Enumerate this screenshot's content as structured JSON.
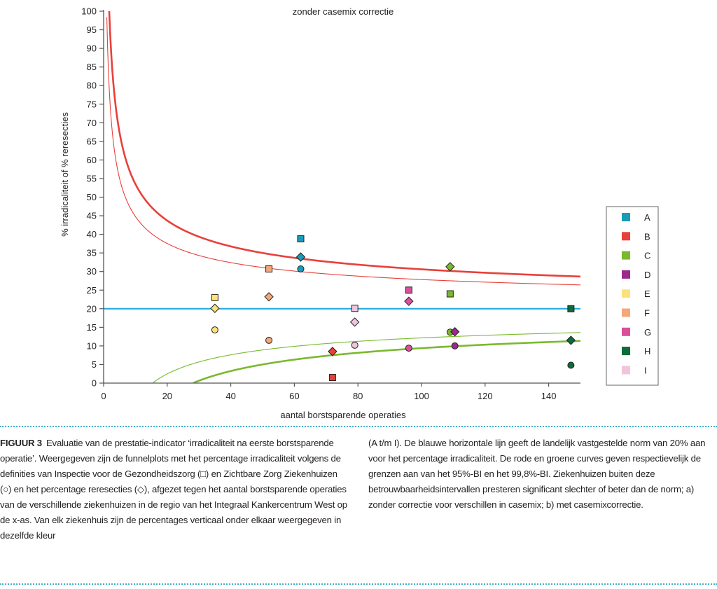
{
  "chart_data": {
    "type": "scatter",
    "title": "zonder casemix correctie",
    "xlabel": "aantal borstsparende operaties",
    "ylabel": "% irradicaliteit of % reresecties",
    "xlim": [
      0,
      150
    ],
    "ylim": [
      0,
      100
    ],
    "xticks": [
      0,
      20,
      40,
      60,
      80,
      100,
      120,
      140
    ],
    "yticks": [
      0,
      5,
      10,
      15,
      20,
      25,
      30,
      35,
      40,
      45,
      50,
      55,
      60,
      65,
      70,
      75,
      80,
      85,
      90,
      95,
      100
    ],
    "grid": false,
    "legend_position": "right",
    "reference_line": {
      "name": "landelijke norm",
      "y": 20,
      "color": "#27a9e0"
    },
    "funnel": {
      "proportion": 0.2,
      "limits": [
        {
          "name": "95%-BI",
          "z": 1.96,
          "color": "#e8403a",
          "weight": "thin-upper",
          "side": "upper"
        },
        {
          "name": "99,8%-BI",
          "z": 2.65,
          "color": "#e8403a",
          "weight": "thick-upper",
          "side": "upper"
        },
        {
          "name": "95%-BI",
          "z": 1.96,
          "color": "#7ab92e",
          "weight": "thin-lower",
          "side": "lower"
        },
        {
          "name": "99,8%-BI",
          "z": 2.65,
          "color": "#7ab92e",
          "weight": "thick-lower",
          "side": "lower"
        }
      ]
    },
    "marker_types": {
      "square": "Inspectie voor de Gezondheidszorg",
      "circle": "Zichtbare Zorg Ziekenhuizen",
      "diamond": "reresecties"
    },
    "series": [
      {
        "name": "A",
        "color": "#1a9bb8",
        "x": 62,
        "square": 38.8,
        "diamond": 33.9,
        "circle": 30.7
      },
      {
        "name": "B",
        "color": "#e8403a",
        "x": 72,
        "square": 1.5,
        "diamond": 8.5,
        "circle": null
      },
      {
        "name": "C",
        "color": "#7ab92e",
        "x": 109,
        "square": 24.0,
        "diamond": 31.3,
        "circle": 13.7
      },
      {
        "name": "D",
        "color": "#9a2a8c",
        "x": 110.5,
        "square": null,
        "diamond": 13.8,
        "circle": 10.0
      },
      {
        "name": "E",
        "color": "#fbe27a",
        "x": 35,
        "square": 23.0,
        "diamond": 20.1,
        "circle": 14.3
      },
      {
        "name": "F",
        "color": "#f4a77a",
        "x": 52,
        "square": 30.7,
        "diamond": 23.2,
        "circle": 11.5
      },
      {
        "name": "G",
        "color": "#d94f9a",
        "x": 96,
        "square": 25.0,
        "diamond": 22.0,
        "circle": 9.4
      },
      {
        "name": "H",
        "color": "#0e6b3a",
        "x": 147,
        "square": 20.0,
        "diamond": 11.5,
        "circle": 4.8
      },
      {
        "name": "I",
        "color": "#f2c4dc",
        "x": 79,
        "square": 20.1,
        "diamond": 16.4,
        "circle": 10.2
      }
    ]
  },
  "caption": {
    "figure_label": "FIGUUR 3",
    "left_text": "Evaluatie van de prestatie-indicator ‘irradicaliteit na eerste borstsparende operatie’. Weergegeven zijn de funnelplots met het percentage irradicaliteit volgens de definities van Inspectie voor de Gezondheidszorg (□) en Zichtbare Zorg Ziekenhuizen (○) en het percentage reresecties (◇), afgezet tegen het aantal borstsparende operaties van de verschillende ziekenhuizen in de regio van het Integraal Kankercentrum West op de x-as. Van elk ziekenhuis zijn de percentages verticaal onder elkaar weergegeven in dezelfde kleur",
    "right_text": "(A t/m I). De blauwe horizontale lijn geeft de landelijk vastgestelde norm van 20% aan voor het percentage irradicaliteit. De rode en groene curves geven respectievelijk de grenzen aan van het 95%-BI en het 99,8%-BI. Ziekenhuizen buiten deze betrouwbaarheidsintervallen presteren significant slechter of beter dan de norm; a) zonder correctie voor verschillen in casemix; b) met casemixcorrectie."
  }
}
